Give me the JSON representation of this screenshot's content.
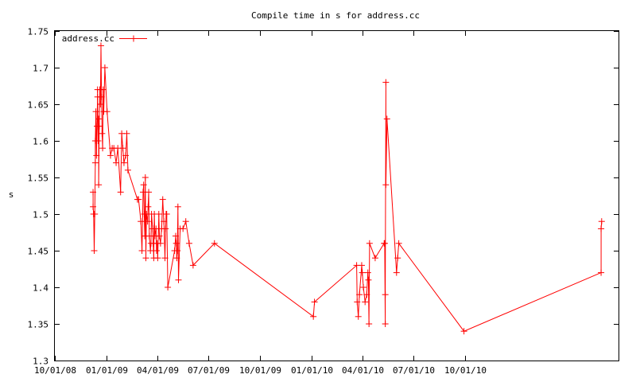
{
  "chart_data": {
    "type": "line",
    "title": "Compile time in s for address.cc",
    "xlabel": "",
    "ylabel": "s",
    "legend": {
      "placement": "top-left",
      "entries": [
        "address.cc"
      ]
    },
    "grid": false,
    "xlim": [
      "2008-10-01",
      "2011-07-01"
    ],
    "ylim": [
      1.3,
      1.75
    ],
    "x_tick_labels": [
      "10/01/08",
      "01/01/09",
      "04/01/09",
      "07/01/09",
      "10/01/09",
      "01/01/10",
      "04/01/10",
      "07/01/10",
      "10/01/10"
    ],
    "x_tick_dates": [
      "2008-10-01",
      "2009-01-01",
      "2009-04-01",
      "2009-07-01",
      "2009-10-01",
      "2010-01-01",
      "2010-04-01",
      "2010-07-01",
      "2010-10-01"
    ],
    "y_tick_labels": [
      "1.3",
      "1.35",
      "1.4",
      "1.45",
      "1.5",
      "1.55",
      "1.6",
      "1.65",
      "1.7",
      "1.75"
    ],
    "y_tick_values": [
      1.3,
      1.35,
      1.4,
      1.45,
      1.5,
      1.55,
      1.6,
      1.65,
      1.7,
      1.75
    ],
    "series": [
      {
        "name": "address.cc",
        "color": "#ff0000",
        "points": [
          [
            "2008-12-08",
            1.53
          ],
          [
            "2008-12-08",
            1.51
          ],
          [
            "2008-12-09",
            1.5
          ],
          [
            "2008-12-09",
            1.5
          ],
          [
            "2008-12-10",
            1.45
          ],
          [
            "2008-12-11",
            1.5
          ],
          [
            "2008-12-12",
            1.57
          ],
          [
            "2008-12-12",
            1.6
          ],
          [
            "2008-12-13",
            1.64
          ],
          [
            "2008-12-14",
            1.58
          ],
          [
            "2008-12-15",
            1.62
          ],
          [
            "2008-12-16",
            1.66
          ],
          [
            "2008-12-16",
            1.67
          ],
          [
            "2008-12-17",
            1.6
          ],
          [
            "2008-12-18",
            1.63
          ],
          [
            "2008-12-18",
            1.54
          ],
          [
            "2008-12-19",
            1.62
          ],
          [
            "2008-12-20",
            1.67
          ],
          [
            "2008-12-21",
            1.65
          ],
          [
            "2008-12-22",
            1.73
          ],
          [
            "2008-12-23",
            1.66
          ],
          [
            "2008-12-24",
            1.61
          ],
          [
            "2008-12-25",
            1.59
          ],
          [
            "2008-12-26",
            1.67
          ],
          [
            "2008-12-27",
            1.64
          ],
          [
            "2008-12-29",
            1.7
          ],
          [
            "2009-01-02",
            1.64
          ],
          [
            "2009-01-08",
            1.58
          ],
          [
            "2009-01-11",
            1.59
          ],
          [
            "2009-01-14",
            1.59
          ],
          [
            "2009-01-18",
            1.57
          ],
          [
            "2009-01-21",
            1.59
          ],
          [
            "2009-01-26",
            1.53
          ],
          [
            "2009-01-28",
            1.61
          ],
          [
            "2009-01-30",
            1.59
          ],
          [
            "2009-02-01",
            1.57
          ],
          [
            "2009-02-04",
            1.58
          ],
          [
            "2009-02-06",
            1.61
          ],
          [
            "2009-02-08",
            1.56
          ],
          [
            "2009-02-25",
            1.52
          ],
          [
            "2009-02-27",
            1.52
          ],
          [
            "2009-03-03",
            1.49
          ],
          [
            "2009-03-05",
            1.45
          ],
          [
            "2009-03-07",
            1.53
          ],
          [
            "2009-03-08",
            1.54
          ],
          [
            "2009-03-09",
            1.5
          ],
          [
            "2009-03-10",
            1.47
          ],
          [
            "2009-03-11",
            1.55
          ],
          [
            "2009-03-12",
            1.44
          ],
          [
            "2009-03-13",
            1.5
          ],
          [
            "2009-03-15",
            1.49
          ],
          [
            "2009-03-16",
            1.51
          ],
          [
            "2009-03-17",
            1.53
          ],
          [
            "2009-03-18",
            1.47
          ],
          [
            "2009-03-20",
            1.45
          ],
          [
            "2009-03-21",
            1.46
          ],
          [
            "2009-03-22",
            1.5
          ],
          [
            "2009-03-24",
            1.48
          ],
          [
            "2009-03-25",
            1.46
          ],
          [
            "2009-03-26",
            1.44
          ],
          [
            "2009-03-27",
            1.5
          ],
          [
            "2009-03-28",
            1.47
          ],
          [
            "2009-03-30",
            1.48
          ],
          [
            "2009-03-31",
            1.45
          ],
          [
            "2009-04-01",
            1.46
          ],
          [
            "2009-04-02",
            1.44
          ],
          [
            "2009-04-04",
            1.5
          ],
          [
            "2009-04-05",
            1.47
          ],
          [
            "2009-04-07",
            1.46
          ],
          [
            "2009-04-09",
            1.48
          ],
          [
            "2009-04-11",
            1.52
          ],
          [
            "2009-04-13",
            1.49
          ],
          [
            "2009-04-15",
            1.44
          ],
          [
            "2009-04-16",
            1.48
          ],
          [
            "2009-04-17",
            1.5
          ],
          [
            "2009-04-18",
            1.5
          ],
          [
            "2009-04-20",
            1.4
          ],
          [
            "2009-05-02",
            1.45
          ],
          [
            "2009-05-04",
            1.47
          ],
          [
            "2009-05-05",
            1.46
          ],
          [
            "2009-05-06",
            1.44
          ],
          [
            "2009-05-07",
            1.45
          ],
          [
            "2009-05-08",
            1.51
          ],
          [
            "2009-05-09",
            1.41
          ],
          [
            "2009-05-12",
            1.48
          ],
          [
            "2009-05-17",
            1.48
          ],
          [
            "2009-05-22",
            1.49
          ],
          [
            "2009-05-28",
            1.46
          ],
          [
            "2009-06-04",
            1.43
          ],
          [
            "2009-07-12",
            1.46
          ],
          [
            "2010-01-04",
            1.36
          ],
          [
            "2010-01-06",
            1.38
          ],
          [
            "2010-03-22",
            1.43
          ],
          [
            "2010-03-23",
            1.38
          ],
          [
            "2010-03-25",
            1.36
          ],
          [
            "2010-03-27",
            1.39
          ],
          [
            "2010-03-31",
            1.43
          ],
          [
            "2010-04-01",
            1.42
          ],
          [
            "2010-04-03",
            1.4
          ],
          [
            "2010-04-06",
            1.38
          ],
          [
            "2010-04-09",
            1.39
          ],
          [
            "2010-04-11",
            1.42
          ],
          [
            "2010-04-12",
            1.41
          ],
          [
            "2010-04-13",
            1.35
          ],
          [
            "2010-04-14",
            1.46
          ],
          [
            "2010-04-24",
            1.44
          ],
          [
            "2010-05-10",
            1.46
          ],
          [
            "2010-05-11",
            1.46
          ],
          [
            "2010-05-12",
            1.35
          ],
          [
            "2010-05-12",
            1.39
          ],
          [
            "2010-05-13",
            1.68
          ],
          [
            "2010-05-13",
            1.54
          ],
          [
            "2010-05-15",
            1.63
          ],
          [
            "2010-06-01",
            1.42
          ],
          [
            "2010-06-03",
            1.44
          ],
          [
            "2010-06-05",
            1.46
          ],
          [
            "2010-09-29",
            1.34
          ],
          [
            "2011-05-31",
            1.42
          ],
          [
            "2011-05-31",
            1.48
          ],
          [
            "2011-06-01",
            1.49
          ]
        ]
      }
    ]
  }
}
